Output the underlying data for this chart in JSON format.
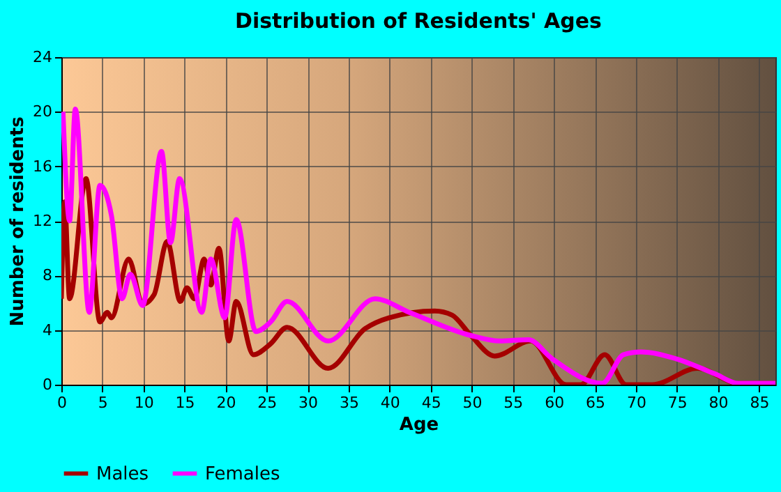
{
  "chart_data": {
    "type": "line",
    "title": "Distribution of Residents' Ages",
    "xlabel": "Age",
    "ylabel": "Number of residents",
    "xlim": [
      0,
      87
    ],
    "xticks": [
      0,
      5,
      10,
      15,
      20,
      25,
      30,
      35,
      40,
      45,
      50,
      55,
      60,
      65,
      70,
      75,
      80,
      85
    ],
    "ylim": [
      0,
      24
    ],
    "yticks": [
      0,
      4,
      8,
      12,
      16,
      20,
      24
    ],
    "grid": true,
    "legend": "bottom",
    "line_style": "solid",
    "series": [
      {
        "name": "Males",
        "color": "#a50000",
        "x": [
          0,
          0.4,
          1.0,
          3.0,
          4.7,
          5.6,
          6.1,
          8.2,
          9.9,
          11.3,
          12.9,
          14.5,
          15.3,
          16.2,
          17.4,
          18.2,
          19.2,
          20.4,
          21.3,
          23.4,
          25.5,
          27.5,
          32.5,
          37.0,
          39.9,
          45.5,
          47.6,
          49.9,
          52.8,
          57.2,
          61.5,
          63.3,
          66.2,
          68.8,
          72.0,
          77.5,
          82.5,
          87
        ],
        "values": [
          6.3,
          13.4,
          6.3,
          15.1,
          4.6,
          5.3,
          4.9,
          9.2,
          5.9,
          6.6,
          10.5,
          6.1,
          7.1,
          6.3,
          9.2,
          7.3,
          10.0,
          3.2,
          6.1,
          2.2,
          3.0,
          4.2,
          1.2,
          4.1,
          4.9,
          5.4,
          5.1,
          3.6,
          2.1,
          3.2,
          0,
          0,
          2.2,
          0,
          0,
          1.2,
          0.1,
          0.1
        ]
      },
      {
        "name": "Females",
        "color": "#ff00ff",
        "x": [
          0.2,
          1.0,
          1.7,
          3.4,
          4.7,
          6.1,
          7.4,
          8.4,
          9.9,
          12.2,
          13.3,
          14.4,
          17.1,
          18.2,
          19.9,
          21.3,
          23.7,
          25.5,
          27.5,
          32.5,
          38.2,
          42.4,
          49.9,
          53.4,
          56.9,
          59.8,
          65.9,
          68.5,
          70.6,
          74.9,
          79.6,
          82.5,
          87
        ],
        "values": [
          20,
          12,
          20.2,
          5.3,
          14.6,
          12.4,
          6.3,
          8.1,
          5.8,
          17.1,
          10.4,
          15.1,
          5.3,
          9.2,
          4.9,
          12.1,
          3.9,
          4.6,
          6.1,
          3.2,
          6.3,
          5.3,
          3.6,
          3.2,
          3.3,
          1.9,
          0.1,
          2.2,
          2.4,
          1.9,
          0.8,
          0.1,
          0.1
        ]
      }
    ]
  }
}
